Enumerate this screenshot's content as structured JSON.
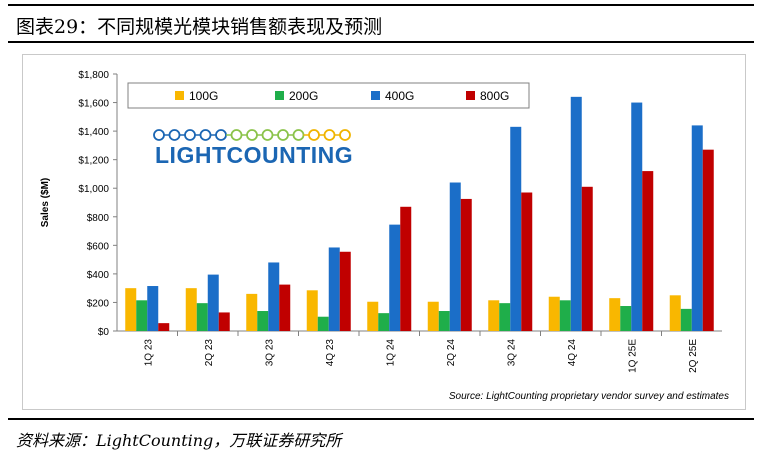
{
  "figure_title": "图表29：不同规模光模块销售额表现及预测",
  "source_note": "资料来源：LightCounting，万联证券研究所",
  "chart_source": "Source: LightCounting proprietary vendor survey and estimates",
  "logo_text": "LIGHTCOUNTING",
  "colors": {
    "100G": "#f9b700",
    "200G": "#1fae4a",
    "400G": "#1b6ec8",
    "800G": "#c00000"
  },
  "chart_data": {
    "type": "bar",
    "title": "",
    "xlabel": "",
    "ylabel": "Sales ($M)",
    "ylim": [
      0,
      1800
    ],
    "yticks": [
      "$0",
      "$200",
      "$400",
      "$600",
      "$800",
      "$1,000",
      "$1,200",
      "$1,400",
      "$1,600",
      "$1,800"
    ],
    "legend_position": "top-left",
    "grid": false,
    "categories": [
      "1Q 23",
      "2Q 23",
      "3Q 23",
      "4Q 23",
      "1Q 24",
      "2Q 24",
      "3Q 24",
      "4Q 24",
      "1Q 25E",
      "2Q 25E"
    ],
    "series": [
      {
        "name": "100G",
        "values": [
          300,
          300,
          260,
          285,
          205,
          205,
          215,
          240,
          230,
          250
        ]
      },
      {
        "name": "200G",
        "values": [
          215,
          195,
          140,
          100,
          125,
          140,
          195,
          215,
          175,
          155
        ]
      },
      {
        "name": "400G",
        "values": [
          315,
          395,
          480,
          585,
          745,
          1040,
          1430,
          1640,
          1600,
          1440
        ]
      },
      {
        "name": "800G",
        "values": [
          55,
          130,
          325,
          555,
          870,
          925,
          970,
          1010,
          1120,
          1270
        ]
      }
    ]
  }
}
